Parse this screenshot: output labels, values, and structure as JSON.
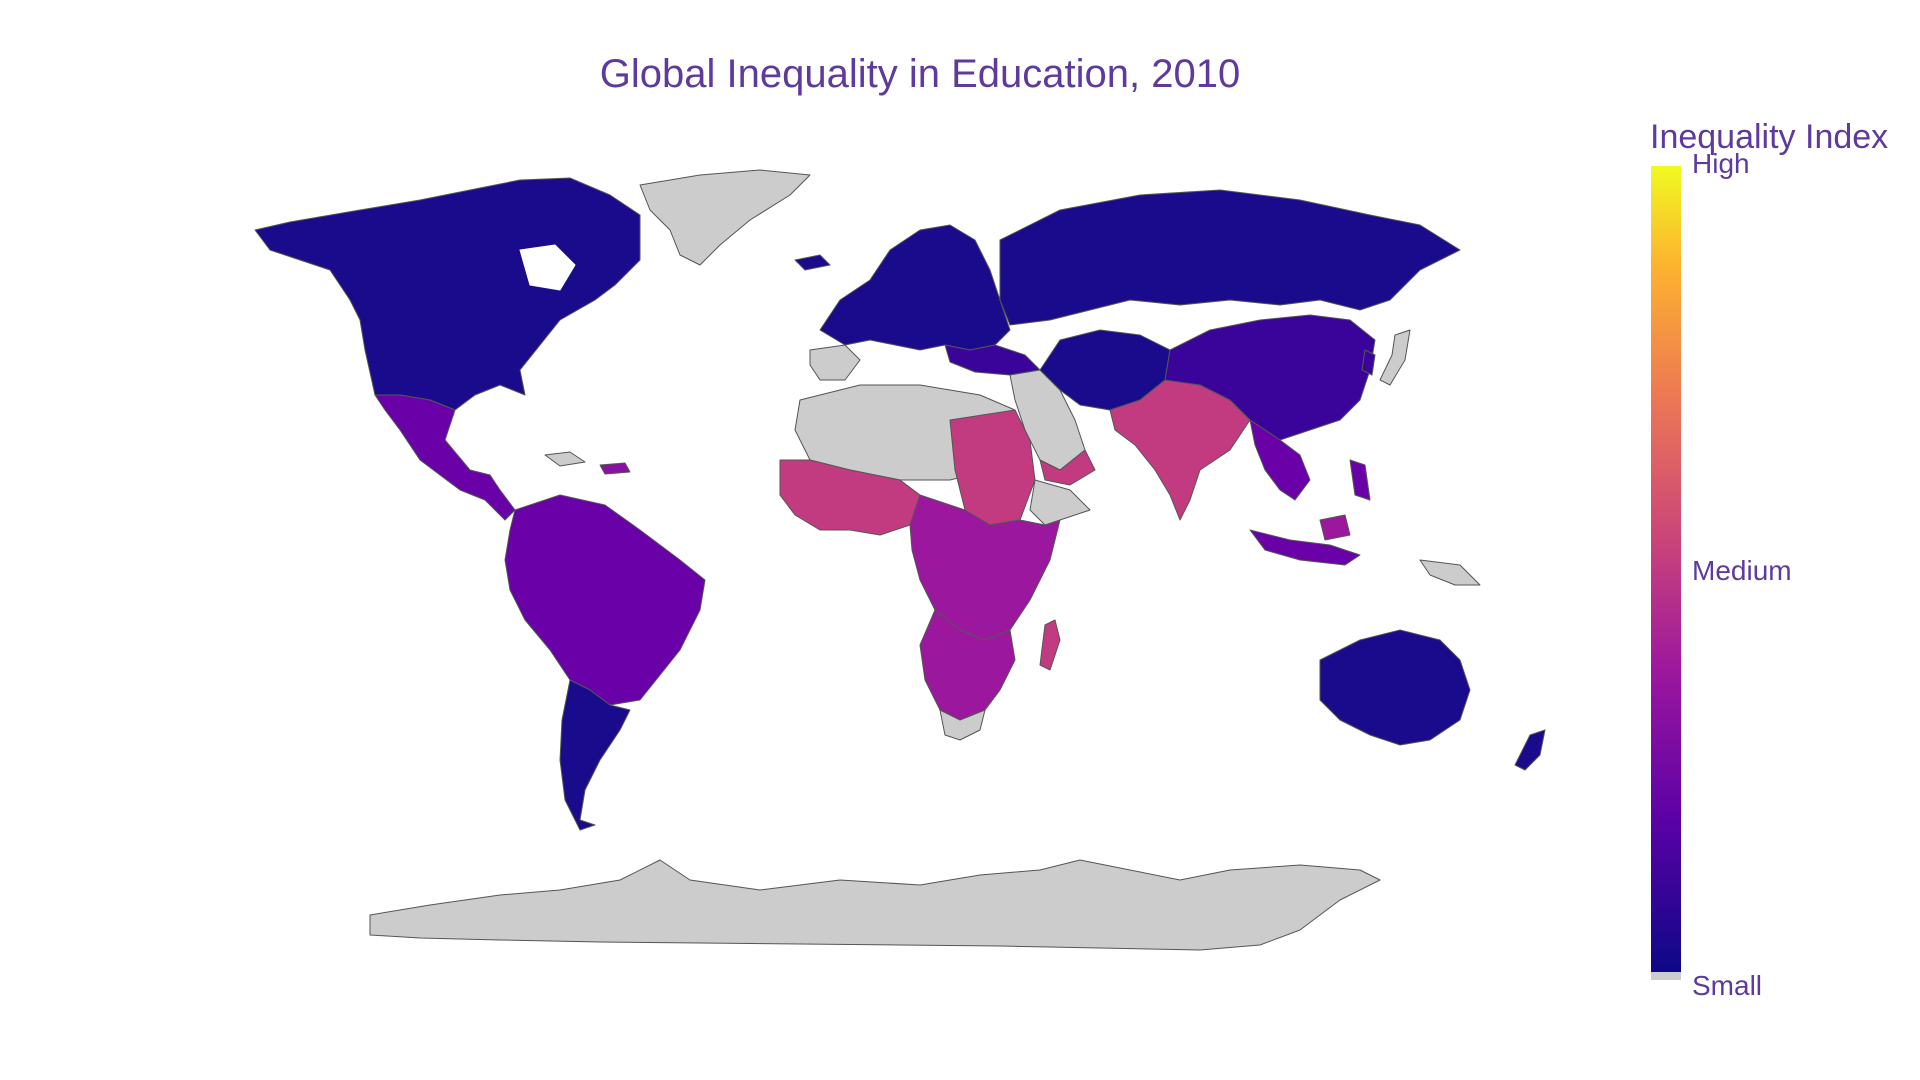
{
  "title": "Global Inequality in Education, 2010",
  "legend": {
    "title": "Inequality Index",
    "ticks": [
      "High",
      "Medium",
      "Small"
    ]
  },
  "colors": {
    "low": "#1a0a8c",
    "mid_low": "#3a049a",
    "violet": "#6a00a8",
    "purple": "#9b179e",
    "magenta": "#c23b80",
    "no_data": "#cccccc"
  },
  "chart_data": {
    "type": "choropleth",
    "title": "Global Inequality in Education, 2010",
    "colorbar_title": "Inequality Index",
    "colorbar_ticks": [
      "High",
      "Medium",
      "Small"
    ],
    "regions": [
      {
        "region": "North America",
        "level": "low"
      },
      {
        "region": "Mexico & Central America",
        "level": "violet"
      },
      {
        "region": "South America (north)",
        "level": "violet"
      },
      {
        "region": "Argentina / Chile",
        "level": "low"
      },
      {
        "region": "Greenland",
        "level": "no data"
      },
      {
        "region": "Europe",
        "level": "low"
      },
      {
        "region": "Russia",
        "level": "low"
      },
      {
        "region": "North Africa",
        "level": "no data"
      },
      {
        "region": "West Africa",
        "level": "magenta"
      },
      {
        "region": "Central & East Africa",
        "level": "purple"
      },
      {
        "region": "Southern Africa",
        "level": "purple"
      },
      {
        "region": "Madagascar",
        "level": "magenta"
      },
      {
        "region": "Middle East (Gulf)",
        "level": "no data"
      },
      {
        "region": "Iran / Central Asia",
        "level": "low"
      },
      {
        "region": "South Asia",
        "level": "magenta"
      },
      {
        "region": "China / Mongolia",
        "level": "mid_low"
      },
      {
        "region": "Southeast Asia",
        "level": "violet"
      },
      {
        "region": "Japan",
        "level": "no data"
      },
      {
        "region": "Australia / New Zealand",
        "level": "low"
      },
      {
        "region": "Antarctica",
        "level": "no data"
      }
    ]
  }
}
